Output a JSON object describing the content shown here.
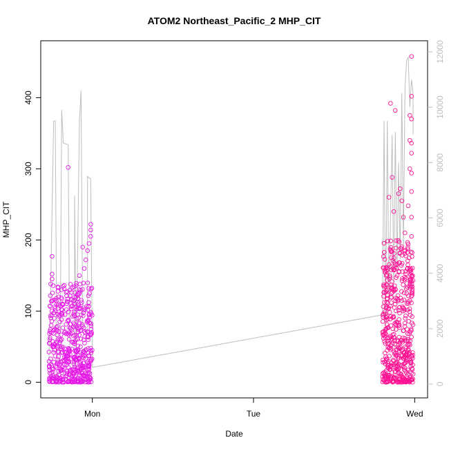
{
  "chart_data": {
    "type": "scatter",
    "title": "ATOM2 Northeast_Pacific_2 MHP_CIT",
    "xlabel": "Date",
    "ylabel": "MHP_CIT",
    "x_ticks": [
      {
        "label": "Mon",
        "value": 0
      },
      {
        "label": "Tue",
        "value": 1
      },
      {
        "label": "Wed",
        "value": 2
      }
    ],
    "x_range": [
      -0.32,
      2.08
    ],
    "ylim_left": [
      -22,
      480
    ],
    "y_ticks_left": [
      0,
      100,
      200,
      300,
      400
    ],
    "ylim_right": [
      -500,
      12400
    ],
    "y_ticks_right": [
      0,
      2000,
      4000,
      6000,
      8000,
      10000,
      12000
    ],
    "grid": false,
    "legend": "none",
    "colors": {
      "points_magenta": "#e619e6",
      "points_pink": "#ff1493",
      "line": "#bebebe",
      "axis": "#000000",
      "right_axis": "#bebebe"
    },
    "clusters": [
      {
        "x_start": -0.27,
        "x_end": 0.0,
        "y_low": 0,
        "y_high": 140,
        "color": "magenta"
      },
      {
        "x_start": 1.8,
        "x_end": 1.99,
        "y_low": 0,
        "y_high": 200,
        "color": "pink"
      }
    ],
    "magenta_points": [
      {
        "x": -0.25,
        "y": 177
      },
      {
        "x": -0.25,
        "y": 152
      },
      {
        "x": -0.25,
        "y": 145
      },
      {
        "x": -0.15,
        "y": 302
      },
      {
        "x": -0.08,
        "y": 150
      },
      {
        "x": -0.06,
        "y": 190
      },
      {
        "x": -0.05,
        "y": 160
      },
      {
        "x": -0.04,
        "y": 172
      },
      {
        "x": -0.03,
        "y": 185
      },
      {
        "x": -0.02,
        "y": 195
      },
      {
        "x": -0.01,
        "y": 205
      },
      {
        "x": -0.01,
        "y": 214
      },
      {
        "x": -0.01,
        "y": 222
      }
    ],
    "pink_points": [
      {
        "x": 1.85,
        "y": 392
      },
      {
        "x": 1.86,
        "y": 288
      },
      {
        "x": 1.84,
        "y": 260
      },
      {
        "x": 1.88,
        "y": 382
      },
      {
        "x": 1.87,
        "y": 240
      },
      {
        "x": 1.9,
        "y": 265
      },
      {
        "x": 1.91,
        "y": 272
      },
      {
        "x": 1.92,
        "y": 255
      },
      {
        "x": 1.93,
        "y": 232
      },
      {
        "x": 1.94,
        "y": 210
      },
      {
        "x": 1.97,
        "y": 375
      },
      {
        "x": 1.97,
        "y": 340
      },
      {
        "x": 1.97,
        "y": 300
      },
      {
        "x": 1.98,
        "y": 458
      },
      {
        "x": 1.98,
        "y": 402
      },
      {
        "x": 1.98,
        "y": 370
      },
      {
        "x": 1.98,
        "y": 336
      },
      {
        "x": 1.98,
        "y": 322
      },
      {
        "x": 1.98,
        "y": 294
      },
      {
        "x": 1.98,
        "y": 268
      },
      {
        "x": 1.98,
        "y": 232
      },
      {
        "x": 1.98,
        "y": 205
      },
      {
        "x": 1.97,
        "y": 160
      },
      {
        "x": 1.98,
        "y": 150
      },
      {
        "x": 1.98,
        "y": 142
      },
      {
        "x": 1.96,
        "y": 248
      }
    ],
    "line_series": [
      {
        "x": -0.27,
        "y": 800
      },
      {
        "x": -0.26,
        "y": 3000
      },
      {
        "x": -0.24,
        "y": 9500
      },
      {
        "x": -0.23,
        "y": 9500
      },
      {
        "x": -0.22,
        "y": 1000
      },
      {
        "x": -0.2,
        "y": 800
      },
      {
        "x": -0.19,
        "y": 9900
      },
      {
        "x": -0.18,
        "y": 8700
      },
      {
        "x": -0.15,
        "y": 8650
      },
      {
        "x": -0.14,
        "y": 800
      },
      {
        "x": -0.11,
        "y": 600
      },
      {
        "x": -0.11,
        "y": 6800
      },
      {
        "x": -0.1,
        "y": 1000
      },
      {
        "x": -0.08,
        "y": 9500
      },
      {
        "x": -0.07,
        "y": 10600
      },
      {
        "x": -0.06,
        "y": 2000
      },
      {
        "x": -0.03,
        "y": 1800
      },
      {
        "x": -0.03,
        "y": 7500
      },
      {
        "x": -0.01,
        "y": 7400
      },
      {
        "x": 0.0,
        "y": 800
      },
      {
        "x": 0.0,
        "y": 600
      },
      {
        "x": 1.8,
        "y": 2500
      },
      {
        "x": 1.81,
        "y": 9500
      },
      {
        "x": 1.82,
        "y": 2000
      },
      {
        "x": 1.83,
        "y": 9500
      },
      {
        "x": 1.84,
        "y": 3000
      },
      {
        "x": 1.86,
        "y": 9000
      },
      {
        "x": 1.87,
        "y": 3500
      },
      {
        "x": 1.88,
        "y": 9100
      },
      {
        "x": 1.89,
        "y": 4000
      },
      {
        "x": 1.9,
        "y": 8000
      },
      {
        "x": 1.91,
        "y": 4500
      },
      {
        "x": 1.92,
        "y": 10500
      },
      {
        "x": 1.93,
        "y": 5000
      },
      {
        "x": 1.94,
        "y": 10700
      },
      {
        "x": 1.95,
        "y": 11700
      },
      {
        "x": 1.96,
        "y": 11800
      },
      {
        "x": 1.97,
        "y": 10000
      },
      {
        "x": 1.98,
        "y": 11000
      },
      {
        "x": 1.99,
        "y": 10500
      },
      {
        "x": 1.99,
        "y": 9000
      }
    ]
  }
}
